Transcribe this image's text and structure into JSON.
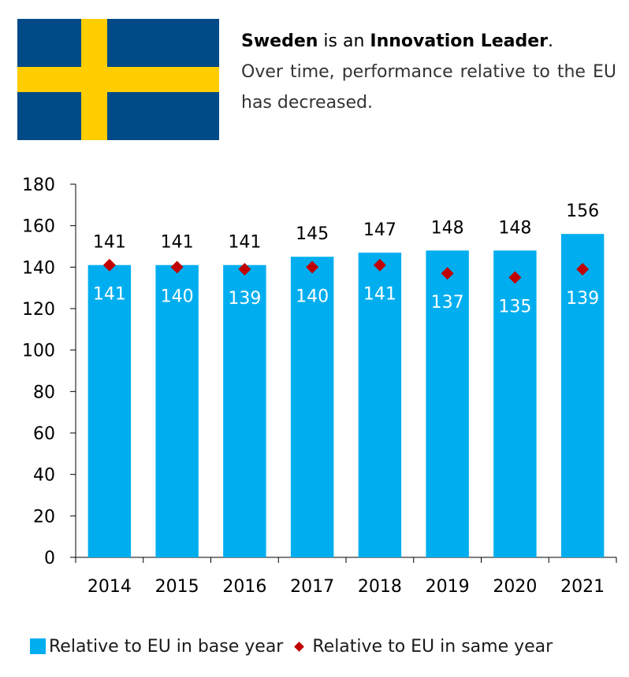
{
  "header": {
    "country": "Sweden",
    "connector": "is an",
    "group": "Innovation Leader",
    "period": ".",
    "line2": "Over time, performance relative to the EU",
    "line3": "has decreased."
  },
  "flag": {
    "country": "Sweden",
    "field_color": "#004A87",
    "cross_color": "#FFCD00"
  },
  "chart_data": {
    "type": "bar",
    "categories": [
      "2014",
      "2015",
      "2016",
      "2017",
      "2018",
      "2019",
      "2020",
      "2021"
    ],
    "series": [
      {
        "name": "Relative to EU in base year",
        "kind": "bar",
        "color": "#00AEEF",
        "values": [
          141,
          141,
          141,
          145,
          147,
          148,
          148,
          156
        ]
      },
      {
        "name": "Relative to EU in same year",
        "kind": "marker",
        "color": "#C00000",
        "values": [
          141,
          140,
          139,
          140,
          141,
          137,
          135,
          139
        ]
      }
    ],
    "yticks": [
      0,
      20,
      40,
      60,
      80,
      100,
      120,
      140,
      160,
      180
    ],
    "ylim": [
      0,
      180
    ],
    "title": "",
    "xlabel": "",
    "ylabel": "",
    "grid": false,
    "legend_position": "bottom"
  },
  "legend": {
    "bar_label": "Relative to EU in base year",
    "marker_label": "Relative to EU in same year"
  }
}
